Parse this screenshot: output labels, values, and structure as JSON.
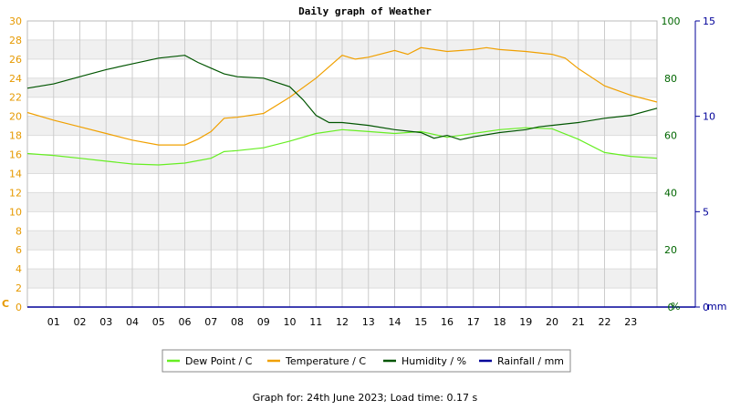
{
  "chart_data": {
    "type": "line",
    "title": "Daily graph of Weather",
    "x_ticks": [
      "01",
      "02",
      "03",
      "04",
      "05",
      "06",
      "07",
      "08",
      "09",
      "10",
      "11",
      "12",
      "13",
      "14",
      "15",
      "16",
      "17",
      "18",
      "19",
      "20",
      "21",
      "22",
      "23"
    ],
    "xlim": [
      0,
      24
    ],
    "axes": {
      "left": {
        "label": "C",
        "ticks": [
          "0",
          "2",
          "4",
          "6",
          "8",
          "10",
          "12",
          "14",
          "16",
          "18",
          "20",
          "22",
          "24",
          "26",
          "28",
          "30"
        ],
        "range": [
          0,
          30
        ],
        "color": "#e69900"
      },
      "humidity": {
        "label": "%",
        "ticks": [
          "0",
          "20",
          "40",
          "60",
          "80",
          "100"
        ],
        "range": [
          0,
          100
        ],
        "color": "#006600"
      },
      "rain": {
        "label": "mm",
        "ticks": [
          "0",
          "5",
          "10",
          "15"
        ],
        "range": [
          0,
          15
        ],
        "color": "#000099"
      }
    },
    "grid": true,
    "legend_position": "bottom",
    "series": [
      {
        "name": "Dew Point / C",
        "color": "#66ee22",
        "axis": "left",
        "points": [
          [
            0,
            16.1
          ],
          [
            1,
            15.9
          ],
          [
            2,
            15.6
          ],
          [
            3,
            15.3
          ],
          [
            4,
            15.0
          ],
          [
            5,
            14.9
          ],
          [
            6,
            15.1
          ],
          [
            7,
            15.6
          ],
          [
            7.5,
            16.3
          ],
          [
            8,
            16.4
          ],
          [
            9,
            16.7
          ],
          [
            10,
            17.4
          ],
          [
            11,
            18.2
          ],
          [
            12,
            18.6
          ],
          [
            13,
            18.4
          ],
          [
            14,
            18.2
          ],
          [
            15,
            18.4
          ],
          [
            16,
            17.8
          ],
          [
            17,
            18.2
          ],
          [
            18,
            18.6
          ],
          [
            19,
            18.8
          ],
          [
            20,
            18.7
          ],
          [
            21,
            17.6
          ],
          [
            22,
            16.2
          ],
          [
            23,
            15.8
          ],
          [
            24,
            15.6
          ]
        ]
      },
      {
        "name": "Temperature / C",
        "color": "#f0a000",
        "axis": "left",
        "points": [
          [
            0,
            20.4
          ],
          [
            1,
            19.6
          ],
          [
            2,
            18.9
          ],
          [
            3,
            18.2
          ],
          [
            4,
            17.5
          ],
          [
            5,
            17.0
          ],
          [
            6,
            17.0
          ],
          [
            6.5,
            17.6
          ],
          [
            7,
            18.4
          ],
          [
            7.5,
            19.8
          ],
          [
            8,
            19.9
          ],
          [
            9,
            20.3
          ],
          [
            10,
            22.0
          ],
          [
            11,
            24.0
          ],
          [
            12,
            26.4
          ],
          [
            12.5,
            26.0
          ],
          [
            13,
            26.2
          ],
          [
            14,
            26.9
          ],
          [
            14.5,
            26.5
          ],
          [
            15,
            27.2
          ],
          [
            16,
            26.8
          ],
          [
            17,
            27.0
          ],
          [
            17.5,
            27.2
          ],
          [
            18,
            27.0
          ],
          [
            19,
            26.8
          ],
          [
            20,
            26.5
          ],
          [
            20.5,
            26.1
          ],
          [
            21,
            25.0
          ],
          [
            22,
            23.2
          ],
          [
            23,
            22.2
          ],
          [
            24,
            21.5
          ]
        ]
      },
      {
        "name": "Humidity / %",
        "color": "#005500",
        "axis": "humidity",
        "points": [
          [
            0,
            76.5
          ],
          [
            1,
            78.0
          ],
          [
            2,
            80.5
          ],
          [
            3,
            83.0
          ],
          [
            4,
            85.0
          ],
          [
            5,
            87.0
          ],
          [
            6,
            88.0
          ],
          [
            6.5,
            85.5
          ],
          [
            7,
            83.5
          ],
          [
            7.5,
            81.5
          ],
          [
            8,
            80.5
          ],
          [
            9,
            80.0
          ],
          [
            10,
            77.0
          ],
          [
            10.5,
            72.5
          ],
          [
            11,
            67.0
          ],
          [
            11.5,
            64.5
          ],
          [
            12,
            64.5
          ],
          [
            13,
            63.5
          ],
          [
            14,
            62.0
          ],
          [
            15,
            61.0
          ],
          [
            15.5,
            59.0
          ],
          [
            16,
            60.0
          ],
          [
            16.5,
            58.5
          ],
          [
            17,
            59.5
          ],
          [
            18,
            61.0
          ],
          [
            19,
            62.0
          ],
          [
            19.5,
            63.0
          ],
          [
            20,
            63.5
          ],
          [
            21,
            64.5
          ],
          [
            22,
            66.0
          ],
          [
            23,
            67.0
          ],
          [
            24,
            69.5
          ]
        ]
      },
      {
        "name": "Rainfall / mm",
        "color": "#000099",
        "axis": "rain",
        "points": [
          [
            0,
            0
          ],
          [
            24,
            0
          ]
        ]
      }
    ]
  },
  "footer": "Graph for: 24th June 2023; Load time: 0.17 s"
}
